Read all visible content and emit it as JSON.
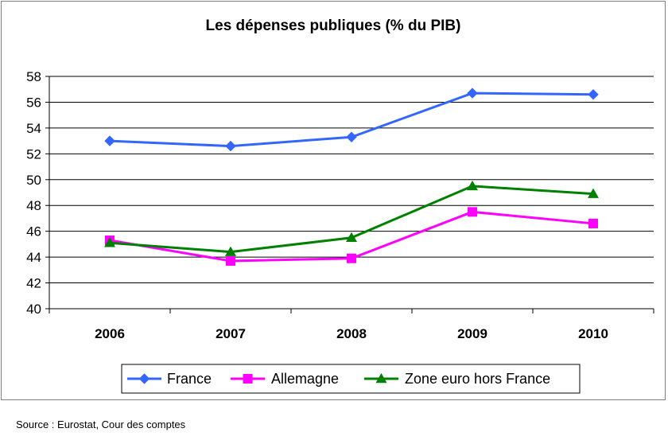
{
  "source": "Source : Eurostat, Cour des comptes",
  "chart_data": {
    "type": "line",
    "title": "Les dépenses publiques (% du PIB)",
    "xlabel": "",
    "ylabel": "",
    "categories": [
      "2006",
      "2007",
      "2008",
      "2009",
      "2010"
    ],
    "ylim": [
      40,
      58
    ],
    "yticks": [
      40,
      42,
      44,
      46,
      48,
      50,
      52,
      54,
      56,
      58
    ],
    "grid": true,
    "legend_position": "bottom",
    "series": [
      {
        "name": "France",
        "values": [
          53.0,
          52.6,
          53.3,
          56.7,
          56.6
        ],
        "color": "#3366ff",
        "marker": "diamond"
      },
      {
        "name": "Allemagne",
        "values": [
          45.3,
          43.7,
          43.9,
          47.5,
          46.6
        ],
        "color": "#ff00ff",
        "marker": "square"
      },
      {
        "name": "Zone euro hors France",
        "values": [
          45.1,
          44.4,
          45.5,
          49.5,
          48.9
        ],
        "color": "#008000",
        "marker": "triangle"
      }
    ]
  }
}
